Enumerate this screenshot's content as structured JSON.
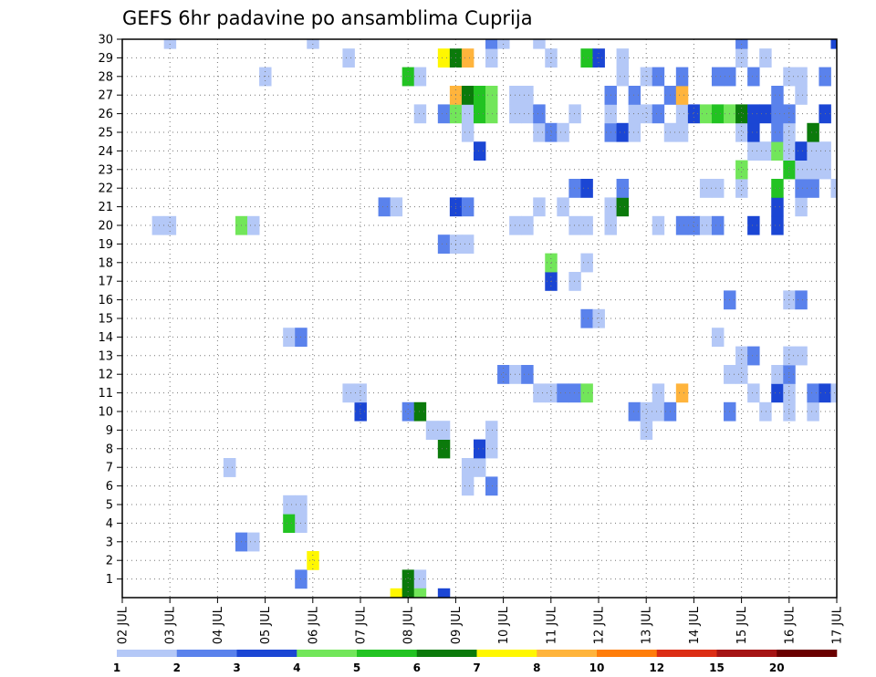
{
  "chart_data": {
    "type": "heatmap",
    "title": "GEFS 6hr padavine po ansamblima Cuprija",
    "x_tick_labels": [
      "02 JUL",
      "03 JUL",
      "04 JUL",
      "05 JUL",
      "06 JUL",
      "07 JUL",
      "08 JUL",
      "09 JUL",
      "10 JUL",
      "11 JUL",
      "12 JUL",
      "13 JUL",
      "14 JUL",
      "15 JUL",
      "16 JUL",
      "17 JUL"
    ],
    "y_tick_labels": [
      "1",
      "2",
      "3",
      "4",
      "5",
      "6",
      "7",
      "8",
      "9",
      "10",
      "11",
      "12",
      "13",
      "14",
      "15",
      "16",
      "17",
      "18",
      "19",
      "20",
      "21",
      "22",
      "23",
      "24",
      "25",
      "26",
      "27",
      "28",
      "29",
      "30"
    ],
    "x_unit": "6-hour step from 02 JUL 00Z",
    "ylim": [
      0,
      30
    ],
    "grid": true,
    "colorbar": {
      "tick_labels": [
        "1",
        "2",
        "3",
        "4",
        "5",
        "6",
        "7",
        "8",
        "10",
        "12",
        "15",
        "20"
      ],
      "colors": [
        "#b4c8f7",
        "#5a82ec",
        "#1b46d4",
        "#72e65a",
        "#22c322",
        "#0b7a0b",
        "#fff700",
        "#ffb43c",
        "#ff7d0a",
        "#dc2d14",
        "#a51414",
        "#6a0000"
      ]
    },
    "cells": [
      [
        0,
        23,
        7
      ],
      [
        0,
        24,
        6
      ],
      [
        1,
        24,
        6
      ],
      [
        1,
        25,
        1
      ],
      [
        0,
        25,
        4
      ],
      [
        0,
        27,
        3
      ],
      [
        1,
        15,
        2
      ],
      [
        2,
        16,
        7
      ],
      [
        3,
        10,
        2
      ],
      [
        3,
        11,
        1
      ],
      [
        4,
        14,
        5
      ],
      [
        4,
        15,
        1
      ],
      [
        5,
        14,
        1
      ],
      [
        5,
        15,
        1
      ],
      [
        6,
        29,
        1
      ],
      [
        6,
        31,
        2
      ],
      [
        7,
        9,
        1
      ],
      [
        7,
        9,
        1
      ],
      [
        7,
        29,
        1
      ],
      [
        7,
        30,
        1
      ],
      [
        8,
        27,
        6
      ],
      [
        8,
        30,
        3
      ],
      [
        8,
        31,
        1
      ],
      [
        9,
        26,
        1
      ],
      [
        9,
        27,
        1
      ],
      [
        9,
        31,
        1
      ],
      [
        9,
        44,
        1
      ],
      [
        10,
        20,
        3
      ],
      [
        10,
        24,
        2
      ],
      [
        10,
        25,
        6
      ],
      [
        10,
        43,
        2
      ],
      [
        10,
        44,
        1
      ],
      [
        10,
        45,
        1
      ],
      [
        10,
        46,
        2
      ],
      [
        10,
        51,
        2
      ],
      [
        10,
        54,
        1
      ],
      [
        10,
        56,
        1
      ],
      [
        10,
        58,
        1
      ],
      [
        11,
        19,
        1
      ],
      [
        11,
        20,
        1
      ],
      [
        11,
        35,
        1
      ],
      [
        11,
        36,
        1
      ],
      [
        11,
        37,
        2
      ],
      [
        11,
        38,
        2
      ],
      [
        11,
        39,
        4
      ],
      [
        11,
        45,
        1
      ],
      [
        11,
        47,
        8
      ],
      [
        11,
        53,
        1
      ],
      [
        11,
        55,
        3
      ],
      [
        11,
        56,
        1
      ],
      [
        11,
        58,
        2
      ],
      [
        11,
        59,
        3
      ],
      [
        11,
        60,
        1
      ],
      [
        12,
        32,
        2
      ],
      [
        12,
        33,
        1
      ],
      [
        12,
        34,
        2
      ],
      [
        12,
        51,
        1
      ],
      [
        12,
        52,
        1
      ],
      [
        12,
        55,
        1
      ],
      [
        12,
        56,
        2
      ],
      [
        13,
        52,
        1
      ],
      [
        13,
        53,
        2
      ],
      [
        13,
        56,
        1
      ],
      [
        13,
        57,
        1
      ],
      [
        14,
        14,
        1
      ],
      [
        14,
        15,
        2
      ],
      [
        14,
        50,
        1
      ],
      [
        15,
        39,
        2
      ],
      [
        15,
        40,
        1
      ],
      [
        16,
        51,
        2
      ],
      [
        16,
        56,
        1
      ],
      [
        16,
        57,
        2
      ],
      [
        17,
        36,
        3
      ],
      [
        17,
        38,
        1
      ],
      [
        18,
        36,
        4
      ],
      [
        18,
        39,
        1
      ],
      [
        19,
        27,
        2
      ],
      [
        19,
        28,
        1
      ],
      [
        19,
        29,
        1
      ],
      [
        20,
        3,
        1
      ],
      [
        20,
        4,
        1
      ],
      [
        20,
        10,
        4
      ],
      [
        20,
        11,
        1
      ],
      [
        20,
        33,
        1
      ],
      [
        20,
        34,
        1
      ],
      [
        20,
        38,
        1
      ],
      [
        20,
        39,
        1
      ],
      [
        20,
        41,
        1
      ],
      [
        20,
        45,
        1
      ],
      [
        20,
        47,
        2
      ],
      [
        20,
        48,
        2
      ],
      [
        20,
        49,
        1
      ],
      [
        20,
        50,
        2
      ],
      [
        20,
        53,
        3
      ],
      [
        20,
        55,
        3
      ],
      [
        21,
        22,
        2
      ],
      [
        21,
        23,
        1
      ],
      [
        21,
        28,
        3
      ],
      [
        21,
        29,
        2
      ],
      [
        21,
        35,
        1
      ],
      [
        21,
        37,
        1
      ],
      [
        21,
        41,
        1
      ],
      [
        21,
        42,
        6
      ],
      [
        21,
        55,
        3
      ],
      [
        21,
        57,
        1
      ],
      [
        22,
        38,
        2
      ],
      [
        22,
        39,
        3
      ],
      [
        22,
        42,
        2
      ],
      [
        22,
        49,
        1
      ],
      [
        22,
        50,
        1
      ],
      [
        22,
        52,
        1
      ],
      [
        22,
        55,
        5
      ],
      [
        22,
        57,
        2
      ],
      [
        22,
        58,
        2
      ],
      [
        22,
        60,
        1
      ],
      [
        23,
        52,
        4
      ],
      [
        23,
        56,
        5
      ],
      [
        23,
        57,
        1
      ],
      [
        23,
        58,
        1
      ],
      [
        23,
        59,
        1
      ],
      [
        24,
        30,
        3
      ],
      [
        24,
        53,
        1
      ],
      [
        24,
        54,
        1
      ],
      [
        24,
        55,
        4
      ],
      [
        24,
        56,
        1
      ],
      [
        24,
        57,
        3
      ],
      [
        24,
        58,
        1
      ],
      [
        24,
        59,
        1
      ],
      [
        25,
        29,
        1
      ],
      [
        25,
        35,
        1
      ],
      [
        25,
        36,
        2
      ],
      [
        25,
        37,
        1
      ],
      [
        25,
        41,
        2
      ],
      [
        25,
        42,
        3
      ],
      [
        25,
        43,
        1
      ],
      [
        25,
        46,
        1
      ],
      [
        25,
        47,
        1
      ],
      [
        25,
        52,
        1
      ],
      [
        25,
        53,
        3
      ],
      [
        25,
        55,
        2
      ],
      [
        25,
        56,
        1
      ],
      [
        25,
        58,
        6
      ],
      [
        26,
        25,
        1
      ],
      [
        26,
        27,
        2
      ],
      [
        26,
        28,
        4
      ],
      [
        26,
        29,
        1
      ],
      [
        26,
        30,
        5
      ],
      [
        26,
        31,
        4
      ],
      [
        26,
        33,
        1
      ],
      [
        26,
        34,
        1
      ],
      [
        26,
        35,
        2
      ],
      [
        26,
        38,
        1
      ],
      [
        26,
        41,
        1
      ],
      [
        26,
        43,
        1
      ],
      [
        26,
        44,
        1
      ],
      [
        26,
        45,
        2
      ],
      [
        26,
        47,
        1
      ],
      [
        26,
        48,
        3
      ],
      [
        26,
        49,
        4
      ],
      [
        26,
        50,
        5
      ],
      [
        26,
        51,
        4
      ],
      [
        26,
        52,
        6
      ],
      [
        26,
        53,
        3
      ],
      [
        26,
        54,
        3
      ],
      [
        26,
        55,
        2
      ],
      [
        26,
        56,
        2
      ],
      [
        26,
        59,
        3
      ],
      [
        27,
        28,
        8
      ],
      [
        27,
        29,
        6
      ],
      [
        27,
        30,
        5
      ],
      [
        27,
        31,
        4
      ],
      [
        27,
        33,
        1
      ],
      [
        27,
        34,
        1
      ],
      [
        27,
        41,
        2
      ],
      [
        27,
        43,
        2
      ],
      [
        27,
        46,
        2
      ],
      [
        27,
        47,
        8
      ],
      [
        27,
        55,
        2
      ],
      [
        27,
        57,
        1
      ],
      [
        28,
        12,
        1
      ],
      [
        28,
        24,
        5
      ],
      [
        28,
        25,
        1
      ],
      [
        28,
        42,
        1
      ],
      [
        28,
        44,
        1
      ],
      [
        28,
        45,
        2
      ],
      [
        28,
        47,
        2
      ],
      [
        28,
        50,
        2
      ],
      [
        28,
        51,
        2
      ],
      [
        28,
        53,
        2
      ],
      [
        28,
        56,
        1
      ],
      [
        28,
        57,
        1
      ],
      [
        28,
        59,
        2
      ],
      [
        29,
        19,
        1
      ],
      [
        29,
        27,
        7
      ],
      [
        29,
        28,
        6
      ],
      [
        29,
        29,
        8
      ],
      [
        29,
        31,
        1
      ],
      [
        29,
        36,
        1
      ],
      [
        29,
        39,
        5
      ],
      [
        29,
        40,
        3
      ],
      [
        29,
        42,
        1
      ],
      [
        29,
        52,
        1
      ],
      [
        29,
        54,
        1
      ],
      [
        30,
        4,
        1
      ],
      [
        30,
        16,
        1
      ],
      [
        30,
        31,
        2
      ],
      [
        30,
        32,
        1
      ],
      [
        30,
        35,
        1
      ],
      [
        30,
        52,
        2
      ],
      [
        30,
        60,
        3
      ]
    ]
  }
}
